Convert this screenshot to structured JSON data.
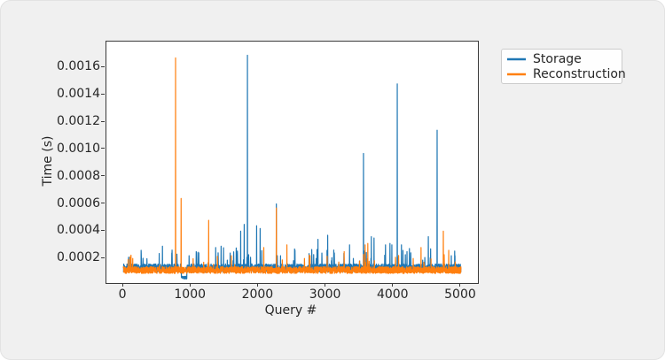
{
  "window": {
    "background_color": "#f0f0f0",
    "plot_background_color": "#ffffff"
  },
  "chart_data": {
    "type": "line",
    "title": "",
    "xlabel": "Query #",
    "ylabel": "Time (s)",
    "xlim": [
      -250,
      5250
    ],
    "ylim": [
      2e-05,
      0.00179
    ],
    "query_range": [
      0,
      5000
    ],
    "n_points": 5000,
    "sample_step": 2,
    "grid": false,
    "xticks": [
      0,
      1000,
      2000,
      3000,
      4000,
      5000
    ],
    "xticklabels": [
      "0",
      "1000",
      "2000",
      "3000",
      "4000",
      "5000"
    ],
    "yticks": [
      0.0002,
      0.0004,
      0.0006,
      0.0008,
      0.001,
      0.0012,
      0.0014,
      0.0016
    ],
    "yticklabels": [
      "0.0002",
      "0.0004",
      "0.0006",
      "0.0008",
      "0.0010",
      "0.0012",
      "0.0014",
      "0.0016"
    ],
    "legend": {
      "position": "outside-upper-right",
      "border_color": "#cccccc"
    },
    "series": [
      {
        "name": "Storage",
        "color": "#1f77b4",
        "noise": {
          "base": 0.0001,
          "amp": 6e-05,
          "bump_prob": 0.02,
          "bump_min": 0.00018,
          "bump_max": 0.00028,
          "dip": [
            860,
            940,
            5e-05
          ]
        },
        "spikes": [
          [
            80,
            0.00021
          ],
          [
            263,
            0.00026
          ],
          [
            579,
            0.00029
          ],
          [
            717,
            0.00024
          ],
          [
            974,
            0.00022
          ],
          [
            1079,
            0.00025
          ],
          [
            1118,
            0.00024
          ],
          [
            1368,
            0.00028
          ],
          [
            1447,
            0.00029
          ],
          [
            1737,
            0.0004
          ],
          [
            1790,
            0.00045
          ],
          [
            1837,
            0.00169
          ],
          [
            1974,
            0.00044
          ],
          [
            2026,
            0.00042
          ],
          [
            2265,
            0.0006
          ],
          [
            2881,
            0.00034
          ],
          [
            3026,
            0.00037
          ],
          [
            3350,
            0.0003
          ],
          [
            3556,
            0.00097
          ],
          [
            3671,
            0.00036
          ],
          [
            3711,
            0.00035
          ],
          [
            3882,
            0.0003
          ],
          [
            3947,
            0.00031
          ],
          [
            3975,
            0.0003
          ],
          [
            4055,
            0.00148
          ],
          [
            4118,
            0.0003
          ],
          [
            4200,
            0.00025
          ],
          [
            4515,
            0.00036
          ],
          [
            4646,
            0.00114
          ],
          [
            4856,
            0.00022
          ],
          [
            4909,
            0.00022
          ]
        ]
      },
      {
        "name": "Reconstruction",
        "color": "#ff7f0e",
        "noise": {
          "base": 9e-05,
          "amp": 5e-05,
          "bump_prob": 0.012,
          "bump_min": 0.00015,
          "bump_max": 0.00023
        },
        "spikes": [
          [
            140,
            0.0002
          ],
          [
            774,
            0.00167
          ],
          [
            855,
            0.00064
          ],
          [
            1263,
            0.00048
          ],
          [
            1600,
            0.00022
          ],
          [
            2079,
            0.00028
          ],
          [
            2265,
            0.00057
          ],
          [
            2421,
            0.0003
          ],
          [
            2763,
            0.00022
          ],
          [
            3270,
            0.00025
          ],
          [
            3580,
            0.0003
          ],
          [
            3620,
            0.00031
          ],
          [
            4291,
            0.0002
          ],
          [
            4408,
            0.00028
          ],
          [
            4738,
            0.0004
          ],
          [
            4817,
            0.00026
          ]
        ]
      }
    ]
  }
}
